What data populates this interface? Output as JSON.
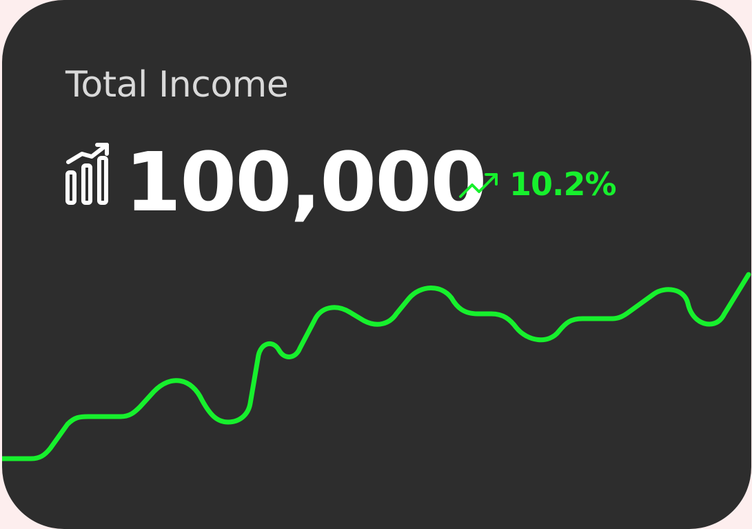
{
  "card": {
    "title": "Total Income",
    "amount": "100,000",
    "change": "10.2%",
    "icons": {
      "stats": "bar-chart-trending-up-icon",
      "trend": "trending-up-arrow-icon"
    }
  },
  "colors": {
    "background": "#fdeeee",
    "card": "#2d2d2d",
    "accent": "#17f02d",
    "amount": "#ffffff",
    "title": "#d9d9d9"
  }
}
